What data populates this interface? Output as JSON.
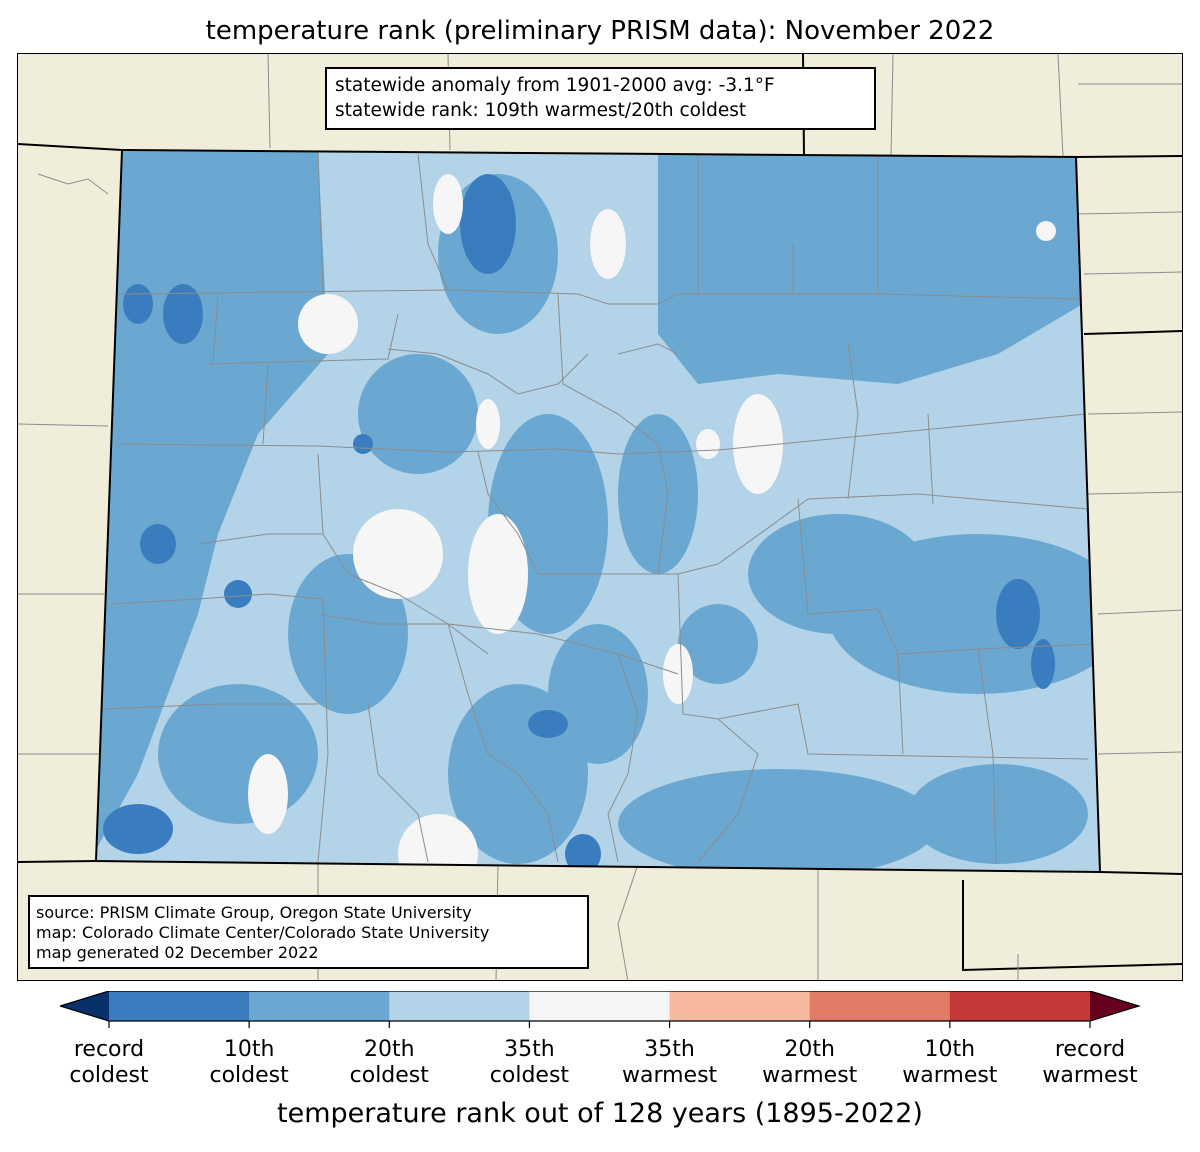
{
  "title": "temperature rank (preliminary PRISM data): November 2022",
  "info": {
    "line1": "statewide anomaly from 1901-2000 avg: -3.1°F",
    "line2": "statewide rank: 109th warmest/20th coldest"
  },
  "source": {
    "line1": "source: PRISM Climate Group, Oregon State University",
    "line2": "map: Colorado Climate Center/Colorado State University",
    "line3": "map generated 02 December 2022"
  },
  "colorbar": {
    "title": "temperature rank out of 128 years (1895-2022)",
    "ticks": [
      {
        "l1": "record",
        "l2": "coldest"
      },
      {
        "l1": "10th",
        "l2": "coldest"
      },
      {
        "l1": "20th",
        "l2": "coldest"
      },
      {
        "l1": "35th",
        "l2": "coldest"
      },
      {
        "l1": "35th",
        "l2": "warmest"
      },
      {
        "l1": "20th",
        "l2": "warmest"
      },
      {
        "l1": "10th",
        "l2": "warmest"
      },
      {
        "l1": "record",
        "l2": "warmest"
      }
    ],
    "under_color": "#08306b",
    "over_color": "#67001f",
    "colors": [
      "#3a7dbf",
      "#6aa8d2",
      "#b3d4e8",
      "#f7f6f6",
      "#f6b99f",
      "#e27b66",
      "#c4383a"
    ]
  },
  "colors": {
    "land": "#f0eeda",
    "border": "#000000",
    "county": "#8c8c8c"
  }
}
